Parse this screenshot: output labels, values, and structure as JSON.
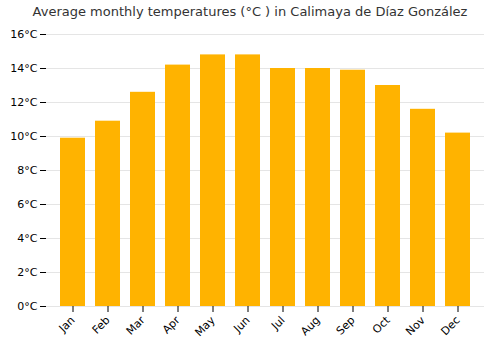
{
  "chart_data": {
    "type": "bar",
    "title": "Average monthly temperatures (°C ) in Calimaya de Díaz González",
    "categories": [
      "Jan",
      "Feb",
      "Mar",
      "Apr",
      "May",
      "Jun",
      "Jul",
      "Aug",
      "Sep",
      "Oct",
      "Nov",
      "Dec"
    ],
    "values": [
      9.9,
      10.9,
      12.6,
      14.2,
      14.8,
      14.8,
      14.0,
      14.0,
      13.9,
      13.0,
      11.6,
      10.2
    ],
    "color": "#FFB300",
    "ylim": [
      0,
      16
    ],
    "yticks": [
      {
        "value": 0,
        "label": "0°C"
      },
      {
        "value": 2,
        "label": "2°C"
      },
      {
        "value": 4,
        "label": "4°C"
      },
      {
        "value": 6,
        "label": "6°C"
      },
      {
        "value": 8,
        "label": "8°C"
      },
      {
        "value": 10,
        "label": "10°C"
      },
      {
        "value": 12,
        "label": "12°C"
      },
      {
        "value": 14,
        "label": "14°C"
      },
      {
        "value": 16,
        "label": "16°C"
      }
    ],
    "grid": true
  }
}
